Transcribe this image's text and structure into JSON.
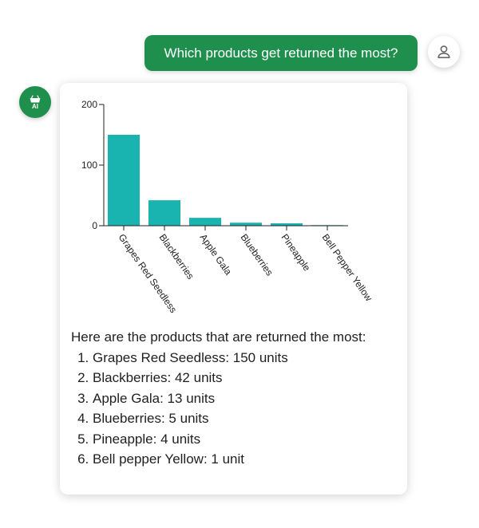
{
  "user_message": {
    "text": "Which products get returned the most?"
  },
  "ai_avatar": {
    "label": "AI",
    "icon": "shopping-basket-icon"
  },
  "user_avatar": {
    "icon": "person-icon"
  },
  "colors": {
    "accent": "#1f8f4e",
    "bar": "#1ab4b0",
    "axis": "#222222"
  },
  "chart_data": {
    "type": "bar",
    "categories": [
      "Grapes Red Seedless",
      "Blackberries",
      "Apple Gala",
      "Blueberries",
      "Pineapple",
      "Bell Pepper Yellow"
    ],
    "values": [
      150,
      42,
      13,
      5,
      4,
      1
    ],
    "yticks": [
      0,
      100,
      200
    ],
    "ylim": [
      0,
      200
    ],
    "title": "",
    "xlabel": "",
    "ylabel": ""
  },
  "answer": {
    "intro": "Here are the products that are returned the most:",
    "items": [
      "Grapes Red Seedless: 150 units",
      "Blackberries: 42 units",
      "Apple Gala: 13 units",
      "Blueberries: 5 units",
      "Pineapple: 4 units",
      "Bell pepper Yellow: 1 unit"
    ]
  }
}
